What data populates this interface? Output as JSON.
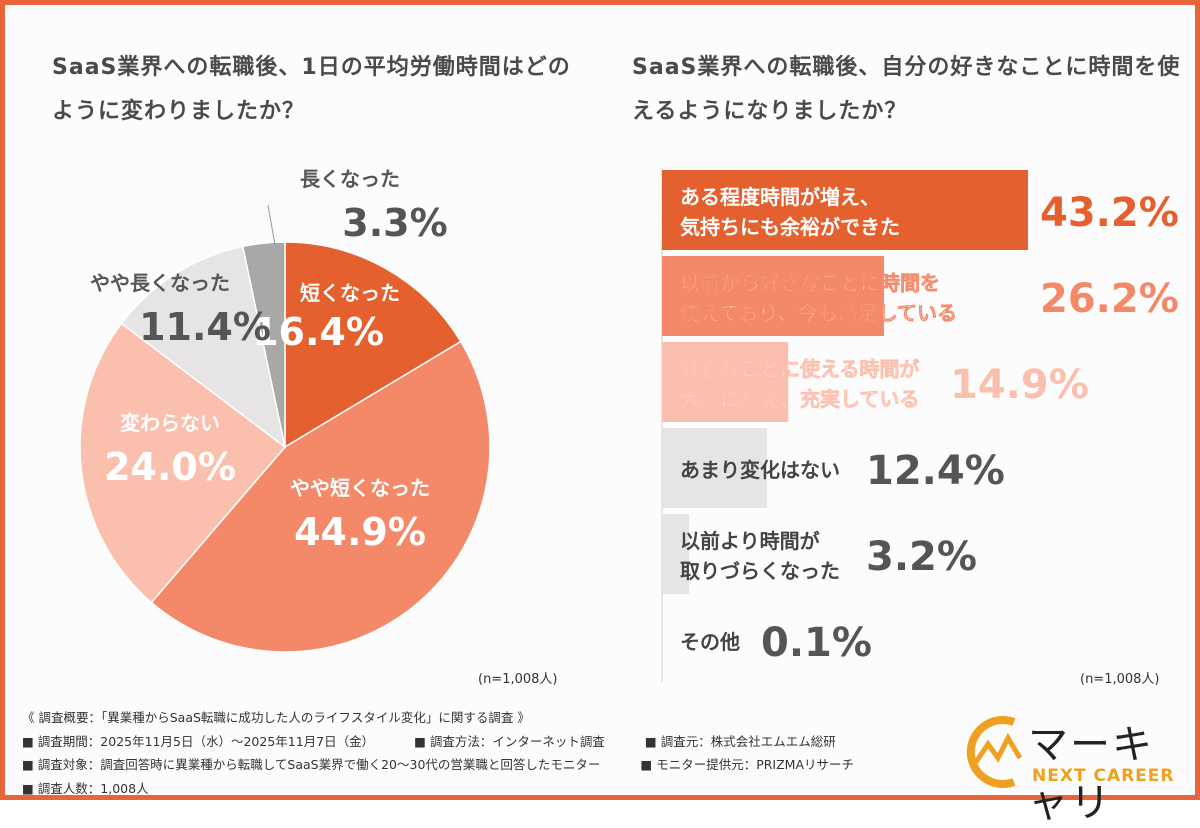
{
  "chart_data": [
    {
      "type": "pie",
      "title": "SaaS業界への転職後、1日の平均労働時間はどのように変わりましたか？",
      "categories": [
        "短くなった",
        "やや短くなった",
        "変わらない",
        "やや長くなった",
        "長くなった"
      ],
      "values": [
        16.4,
        44.9,
        24.0,
        11.4,
        3.3
      ],
      "labels": [
        "16.4%",
        "44.9%",
        "24.0%",
        "11.4%",
        "3.3%"
      ],
      "colors": [
        "#e5602f",
        "#f4896a",
        "#fbbfae",
        "#e6e4e4",
        "#aaa7a7"
      ],
      "note": "(n=1,008人)"
    },
    {
      "type": "bar",
      "orientation": "horizontal",
      "title": "SaaS業界への転職後、自分の好きなことに時間を使えるようになりましたか？",
      "categories": [
        [
          "ある程度時間が増え、",
          "気持ちにも余裕ができた"
        ],
        [
          "以前から好きなことに時間を",
          "使えており、今も満足している"
        ],
        [
          "好きなことに使える時間が",
          "大幅に増え、充実している"
        ],
        [
          "あまり変化はない"
        ],
        [
          "以前より時間が",
          "取りづらくなった"
        ],
        [
          "その他"
        ]
      ],
      "values": [
        43.2,
        26.2,
        14.9,
        12.4,
        3.2,
        0.1
      ],
      "labels": [
        "43.2%",
        "26.2%",
        "14.9%",
        "12.4%",
        "3.2%",
        "0.1%"
      ],
      "colors": [
        "#e5602f",
        "#f4896a",
        "#fbbfae",
        "#e6e4e4",
        "#e6e4e4",
        "#e6e4e4"
      ],
      "note": "(n=1,008人)"
    }
  ],
  "footer": {
    "summary": "《 調査概要：「異業種からSaaS転職に成功した人のライフスタイル変化」に関する調査 》",
    "lines": [
      [
        "■ 調査期間：2025年11月5日（水）〜2025年11月7日（金）",
        "■ 調査方法：インターネット調査",
        "■ 調査元：株式会社エムエム総研"
      ],
      [
        "■ 調査対象：調査回答時に異業種から転職してSaaS業界で働く20〜30代の営業職と回答したモニター",
        "■ モニター提供元：PRIZMAリサーチ"
      ],
      [
        "■ 調査人数：1,008人"
      ]
    ]
  },
  "logo": {
    "name": "マーキャリ",
    "sub": "NEXT CAREER"
  },
  "colors": {
    "border": "#e8643a",
    "text": "#4a4a4a"
  }
}
